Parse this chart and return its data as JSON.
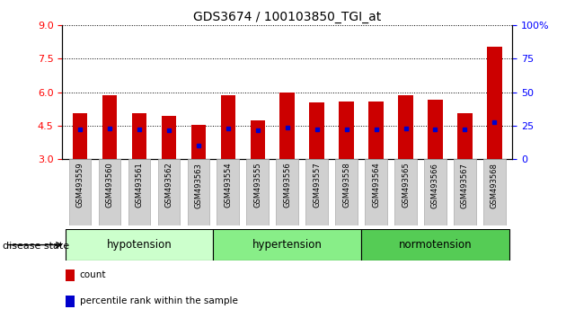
{
  "title": "GDS3674 / 100103850_TGI_at",
  "samples": [
    "GSM493559",
    "GSM493560",
    "GSM493561",
    "GSM493562",
    "GSM493563",
    "GSM493554",
    "GSM493555",
    "GSM493556",
    "GSM493557",
    "GSM493558",
    "GSM493564",
    "GSM493565",
    "GSM493566",
    "GSM493567",
    "GSM493568"
  ],
  "bar_heights": [
    5.05,
    5.85,
    5.05,
    4.95,
    4.52,
    5.85,
    4.72,
    6.0,
    5.55,
    5.6,
    5.6,
    5.85,
    5.65,
    5.05,
    8.05
  ],
  "blue_marker_pos": [
    4.35,
    4.37,
    4.32,
    4.3,
    3.62,
    4.37,
    4.28,
    4.43,
    4.34,
    4.35,
    4.35,
    4.37,
    4.35,
    4.35,
    4.65
  ],
  "bar_bottom": 3.0,
  "ylim_left": [
    3.0,
    9.0
  ],
  "ylim_right": [
    0,
    100
  ],
  "yticks_left": [
    3,
    4.5,
    6,
    7.5,
    9
  ],
  "yticks_right": [
    0,
    25,
    50,
    75,
    100
  ],
  "bar_color": "#cc0000",
  "blue_color": "#0000cc",
  "groups": [
    {
      "label": "hypotension",
      "start": 0,
      "end": 5,
      "color": "#ccffcc"
    },
    {
      "label": "hypertension",
      "start": 5,
      "end": 10,
      "color": "#88ee88"
    },
    {
      "label": "normotension",
      "start": 10,
      "end": 15,
      "color": "#55cc55"
    }
  ],
  "group_label": "disease state",
  "legend_items": [
    {
      "label": "count",
      "color": "#cc0000"
    },
    {
      "label": "percentile rank within the sample",
      "color": "#0000cc"
    }
  ],
  "bar_width": 0.5,
  "fig_width": 6.3,
  "fig_height": 3.54
}
